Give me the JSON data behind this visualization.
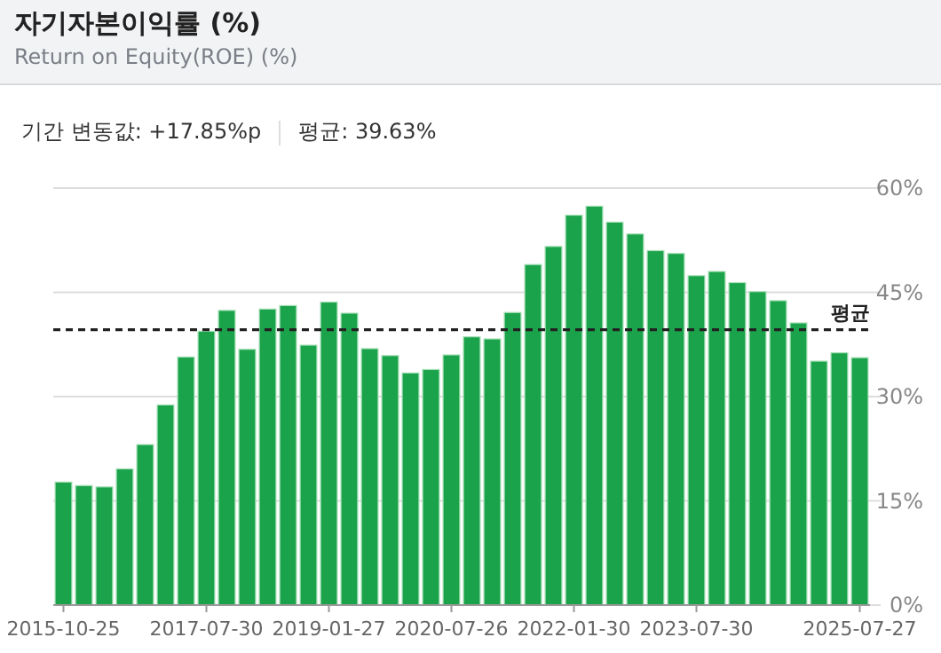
{
  "chart_data": {
    "type": "bar",
    "title": "자기자본이익률 (%)",
    "subtitle": "Return on Equity(ROE) (%)",
    "annotations": [
      "기간 변동값: +17.85%p",
      "평균: 39.63%"
    ],
    "categories": [
      "2015-10-25",
      null,
      null,
      null,
      null,
      null,
      null,
      "2017-07-30",
      null,
      null,
      null,
      null,
      null,
      "2019-01-27",
      null,
      null,
      null,
      null,
      null,
      "2020-07-26",
      null,
      null,
      null,
      null,
      null,
      "2022-01-30",
      null,
      null,
      null,
      null,
      null,
      "2023-07-30",
      null,
      null,
      null,
      null,
      null,
      null,
      null,
      "2025-07-27"
    ],
    "values": [
      17.7,
      17.2,
      17.0,
      19.6,
      23.1,
      28.8,
      35.7,
      39.4,
      42.4,
      36.8,
      42.6,
      43.1,
      37.4,
      43.6,
      42.0,
      36.9,
      35.9,
      33.4,
      33.9,
      36.0,
      38.6,
      38.3,
      42.1,
      49.0,
      51.6,
      56.1,
      57.4,
      55.1,
      53.4,
      51.0,
      50.6,
      47.4,
      48.0,
      46.4,
      45.1,
      43.8,
      40.6,
      35.1,
      36.3,
      35.6
    ],
    "color": "#1aa34a",
    "ylim": [
      0,
      60
    ],
    "yticks": [
      {
        "value": 0,
        "label": "0%"
      },
      {
        "value": 15,
        "label": "15%"
      },
      {
        "value": 30,
        "label": "30%"
      },
      {
        "value": 45,
        "label": "45%"
      },
      {
        "value": 60,
        "label": "60%"
      }
    ],
    "grid": "y",
    "ref_lines": [
      {
        "axis": "y",
        "value": 39.63,
        "label": "평균",
        "line_style": "dashed",
        "color": "#222222"
      }
    ]
  }
}
